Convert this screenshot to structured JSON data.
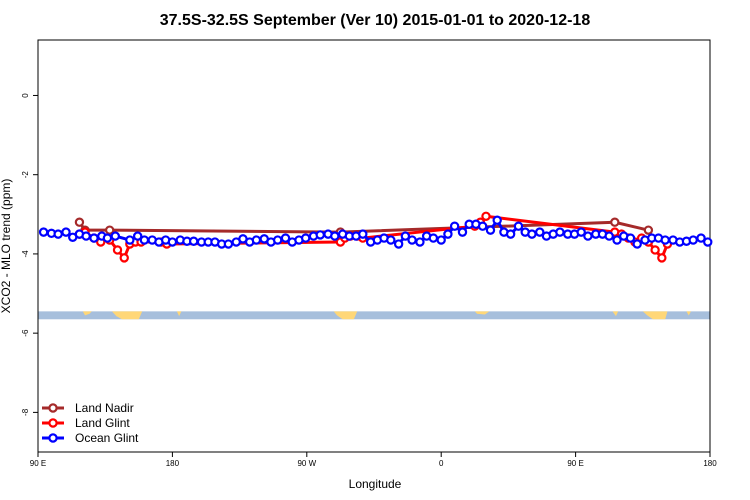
{
  "chart_data": {
    "type": "line",
    "title": "37.5S-32.5S September (Ver 10)   2015-01-01 to 2020-12-18",
    "xlabel": "Longitude",
    "ylabel": "XCO2 - MLO trend (ppm)",
    "xlim": [
      0,
      600
    ],
    "ylim": [
      -9.0,
      1.4
    ],
    "x_ticks": [
      {
        "value": 0,
        "label": "90 E"
      },
      {
        "value": 120,
        "label": "180"
      },
      {
        "value": 240,
        "label": "90 W"
      },
      {
        "value": 360,
        "label": "0"
      },
      {
        "value": 480,
        "label": "90 E"
      },
      {
        "value": 600,
        "label": "180"
      }
    ],
    "y_ticks": [
      {
        "value": 0,
        "label": "0"
      },
      {
        "value": -2,
        "label": "-2"
      },
      {
        "value": -4,
        "label": "-4"
      },
      {
        "value": -6,
        "label": "-6"
      },
      {
        "value": -8,
        "label": "-8"
      }
    ],
    "legend_position": "bottom-left",
    "land_band": {
      "y_top": -5.45,
      "y_bottom": -5.65,
      "ocean_color": "#a7bfdc",
      "land_color": "#ffd778"
    },
    "series": [
      {
        "name": "Land Nadir",
        "color": "#a52a2a",
        "x": [
          37,
          42,
          64,
          270,
          515,
          545
        ],
        "y": [
          -3.2,
          -3.4,
          -3.4,
          -3.45,
          -3.2,
          -3.4
        ]
      },
      {
        "name": "Land Glint",
        "color": "#ff0000",
        "x": [
          37,
          42,
          50,
          56,
          64,
          71,
          77,
          82,
          87,
          92,
          110,
          115,
          270,
          274,
          279,
          285,
          290,
          390,
          395,
          400,
          515,
          521,
          527,
          533,
          539,
          545,
          551,
          557,
          562
        ],
        "y": [
          -3.5,
          -3.45,
          -3.6,
          -3.7,
          -3.65,
          -3.9,
          -4.1,
          -3.75,
          -3.7,
          -3.7,
          -3.7,
          -3.75,
          -3.7,
          -3.6,
          -3.55,
          -3.55,
          -3.6,
          -3.3,
          -3.2,
          -3.05,
          -3.45,
          -3.5,
          -3.6,
          -3.7,
          -3.6,
          -3.7,
          -3.9,
          -4.1,
          -3.75
        ]
      },
      {
        "name": "Ocean Glint",
        "color": "#0000ff",
        "x": [
          5,
          12,
          18,
          25,
          31,
          37,
          43,
          50,
          57,
          62,
          69,
          82,
          89,
          95,
          102,
          108,
          114,
          120,
          127,
          133,
          139,
          146,
          152,
          158,
          164,
          170,
          177,
          183,
          189,
          195,
          202,
          208,
          214,
          221,
          227,
          233,
          239,
          246,
          252,
          259,
          265,
          272,
          278,
          284,
          290,
          297,
          303,
          309,
          315,
          322,
          328,
          334,
          341,
          347,
          353,
          360,
          366,
          372,
          379,
          385,
          391,
          397,
          404,
          410,
          416,
          422,
          429,
          435,
          441,
          448,
          454,
          460,
          466,
          473,
          479,
          485,
          491,
          498,
          504,
          510,
          517,
          523,
          529,
          535,
          542,
          548,
          554,
          560,
          567,
          573,
          579,
          585,
          592,
          598
        ],
        "y": [
          -3.45,
          -3.48,
          -3.5,
          -3.45,
          -3.58,
          -3.5,
          -3.55,
          -3.6,
          -3.55,
          -3.6,
          -3.55,
          -3.65,
          -3.55,
          -3.65,
          -3.65,
          -3.7,
          -3.65,
          -3.7,
          -3.65,
          -3.68,
          -3.68,
          -3.7,
          -3.7,
          -3.7,
          -3.75,
          -3.75,
          -3.7,
          -3.62,
          -3.7,
          -3.65,
          -3.62,
          -3.7,
          -3.65,
          -3.6,
          -3.7,
          -3.65,
          -3.6,
          -3.55,
          -3.52,
          -3.5,
          -3.55,
          -3.5,
          -3.55,
          -3.55,
          -3.5,
          -3.7,
          -3.65,
          -3.6,
          -3.65,
          -3.75,
          -3.55,
          -3.65,
          -3.7,
          -3.55,
          -3.6,
          -3.65,
          -3.5,
          -3.3,
          -3.45,
          -3.25,
          -3.25,
          -3.3,
          -3.4,
          -3.15,
          -3.45,
          -3.5,
          -3.3,
          -3.45,
          -3.5,
          -3.45,
          -3.55,
          -3.5,
          -3.45,
          -3.5,
          -3.5,
          -3.45,
          -3.55,
          -3.5,
          -3.5,
          -3.55,
          -3.65,
          -3.55,
          -3.6,
          -3.75,
          -3.65,
          -3.6,
          -3.6,
          -3.65,
          -3.65,
          -3.7,
          -3.68,
          -3.65,
          -3.6,
          -3.7
        ]
      }
    ]
  }
}
